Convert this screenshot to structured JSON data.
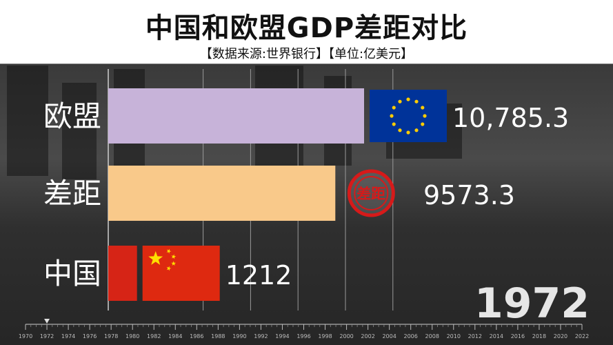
{
  "title": "中国和欧盟GDP差距对比",
  "subtitle": "【数据来源:世界银行】【单位:亿美元】",
  "year": "1972",
  "gap_badge": "差距",
  "chart_data": {
    "type": "bar",
    "orientation": "horizontal",
    "title": "中国和欧盟GDP差距对比",
    "subtitle": "【数据来源:世界银行】【单位:亿美元】",
    "categories": [
      "欧盟",
      "差距",
      "中国"
    ],
    "values": [
      10785.3,
      9573.3,
      1212
    ],
    "value_labels": [
      "10,785.3",
      "9573.3",
      "1212"
    ],
    "bar_colors": [
      "#c7b3d9",
      "#f9c98a",
      "#d62416"
    ],
    "grid_values": [
      4000,
      6000,
      8000,
      10000,
      12000
    ],
    "xlim": [
      0,
      13000
    ],
    "timeline": {
      "ticks": [
        "1970",
        "1972",
        "1974",
        "1976",
        "1978",
        "1980",
        "1982",
        "1984",
        "1986",
        "1988",
        "1990",
        "1992",
        "1994",
        "1996",
        "1998",
        "2000",
        "2002",
        "2004",
        "2006",
        "2008",
        "2010",
        "2012",
        "2014",
        "2016",
        "2018",
        "2020",
        "2022"
      ],
      "current": "1972"
    }
  }
}
